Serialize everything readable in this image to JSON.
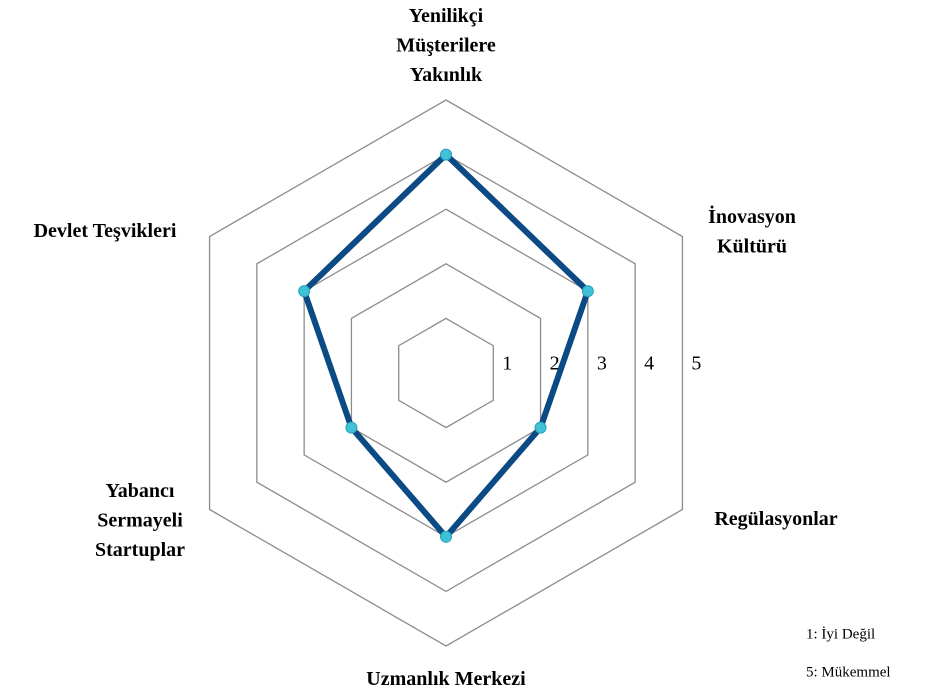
{
  "chart_data": {
    "type": "radar",
    "categories": [
      [
        "Yenilikçi",
        "Müşterilere",
        "Yakınlık"
      ],
      [
        "İnovasyon",
        "Kültürü"
      ],
      [
        "Regülasyonlar"
      ],
      [
        "Uzmanlık Merkezi"
      ],
      [
        "Yabancı",
        "Sermayeli",
        "Startuplar"
      ],
      [
        "Devlet Teşvikleri"
      ]
    ],
    "values": [
      4,
      3,
      2,
      3,
      2,
      3
    ],
    "color": "#0b4a84",
    "marker_color": "#3fc1d6",
    "grid_color": "#8c8c8c",
    "ylim": [
      0,
      5
    ],
    "yticks": [
      1,
      2,
      3,
      4,
      5
    ],
    "annotations": [
      "1: İyi Değil",
      "5: Mükemmel"
    ]
  }
}
